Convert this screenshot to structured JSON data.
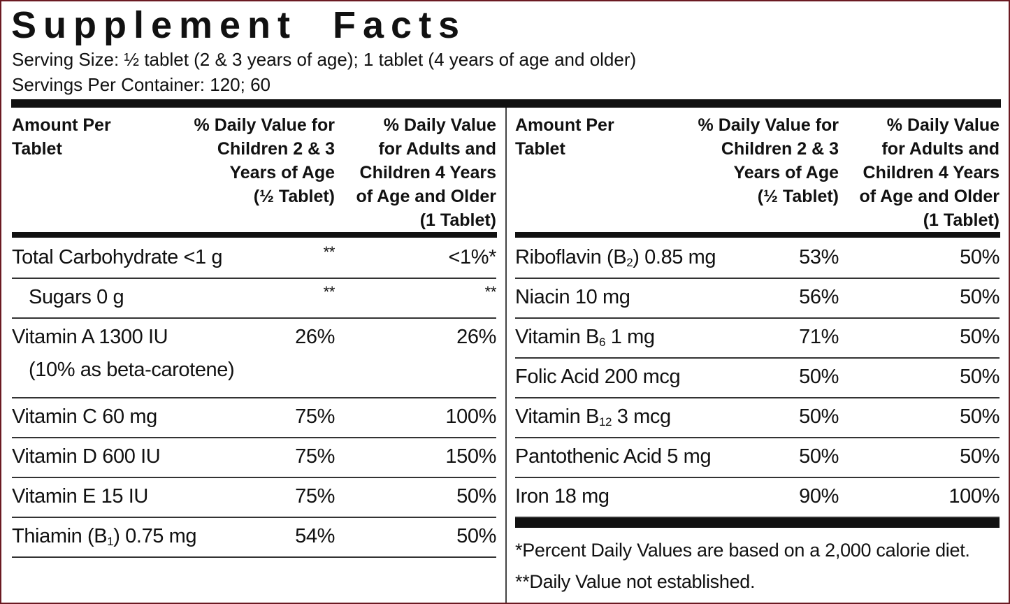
{
  "title": "Supplement Facts",
  "serving_size": "Serving Size: ½ tablet (2 & 3 years of age); 1 tablet (4 years of age and older)",
  "servings_per_container": "Servings Per Container: 120; 60",
  "tables": [
    {
      "headers": [
        [
          "Amount Per",
          "Tablet"
        ],
        [
          "% Daily Value for",
          "Children 2 & 3",
          "Years of Age",
          "(½ Tablet)"
        ],
        [
          "% Daily Value",
          "for Adults and",
          "Children 4 Years",
          "of Age and Older",
          "(1 Tablet)"
        ]
      ],
      "rows": [
        {
          "name": "Total Carbohydrate <1 g",
          "values": [
            "**",
            "<1%*"
          ],
          "sub_rows": [
            {
              "name": "Sugars 0 g",
              "values": [
                "**",
                "**"
              ]
            }
          ]
        },
        {
          "name": "Vitamin A 1300 IU",
          "note": "(10% as beta-carotene)",
          "values": [
            "26%",
            "26%"
          ]
        },
        {
          "name": "Vitamin C 60 mg",
          "values": [
            "75%",
            "100%"
          ]
        },
        {
          "name": "Vitamin D 600 IU",
          "values": [
            "75%",
            "150%"
          ]
        },
        {
          "name": "Vitamin E 15 IU",
          "values": [
            "75%",
            "50%"
          ]
        },
        {
          "name": [
            "Thiamin (B",
            "1",
            ") 0.75 mg"
          ],
          "values": [
            "54%",
            "50%"
          ]
        }
      ]
    },
    {
      "headers": [
        [
          "Amount Per",
          "Tablet"
        ],
        [
          "% Daily Value for",
          "Children 2 & 3",
          "Years of Age",
          "(½ Tablet)"
        ],
        [
          "% Daily Value",
          "for Adults and",
          "Children 4 Years",
          "of Age and Older",
          "(1 Tablet)"
        ]
      ],
      "rows": [
        {
          "name": [
            "Riboflavin (B",
            "2",
            ") 0.85 mg"
          ],
          "values": [
            "53%",
            "50%"
          ]
        },
        {
          "name": "Niacin 10 mg",
          "values": [
            "56%",
            "50%"
          ]
        },
        {
          "name": [
            "Vitamin B",
            "6",
            " 1 mg"
          ],
          "values": [
            "71%",
            "50%"
          ]
        },
        {
          "name": "Folic Acid 200 mcg",
          "values": [
            "50%",
            "50%"
          ]
        },
        {
          "name": [
            "Vitamin B",
            "12",
            " 3 mcg"
          ],
          "values": [
            "50%",
            "50%"
          ]
        },
        {
          "name": "Pantothenic Acid 5 mg",
          "values": [
            "50%",
            "50%"
          ]
        },
        {
          "name": "Iron 18 mg",
          "values": [
            "90%",
            "100%"
          ]
        }
      ]
    }
  ],
  "footnotes": [
    "*Percent Daily Values are based on a 2,000 calorie diet.",
    "**Daily Value not established."
  ]
}
